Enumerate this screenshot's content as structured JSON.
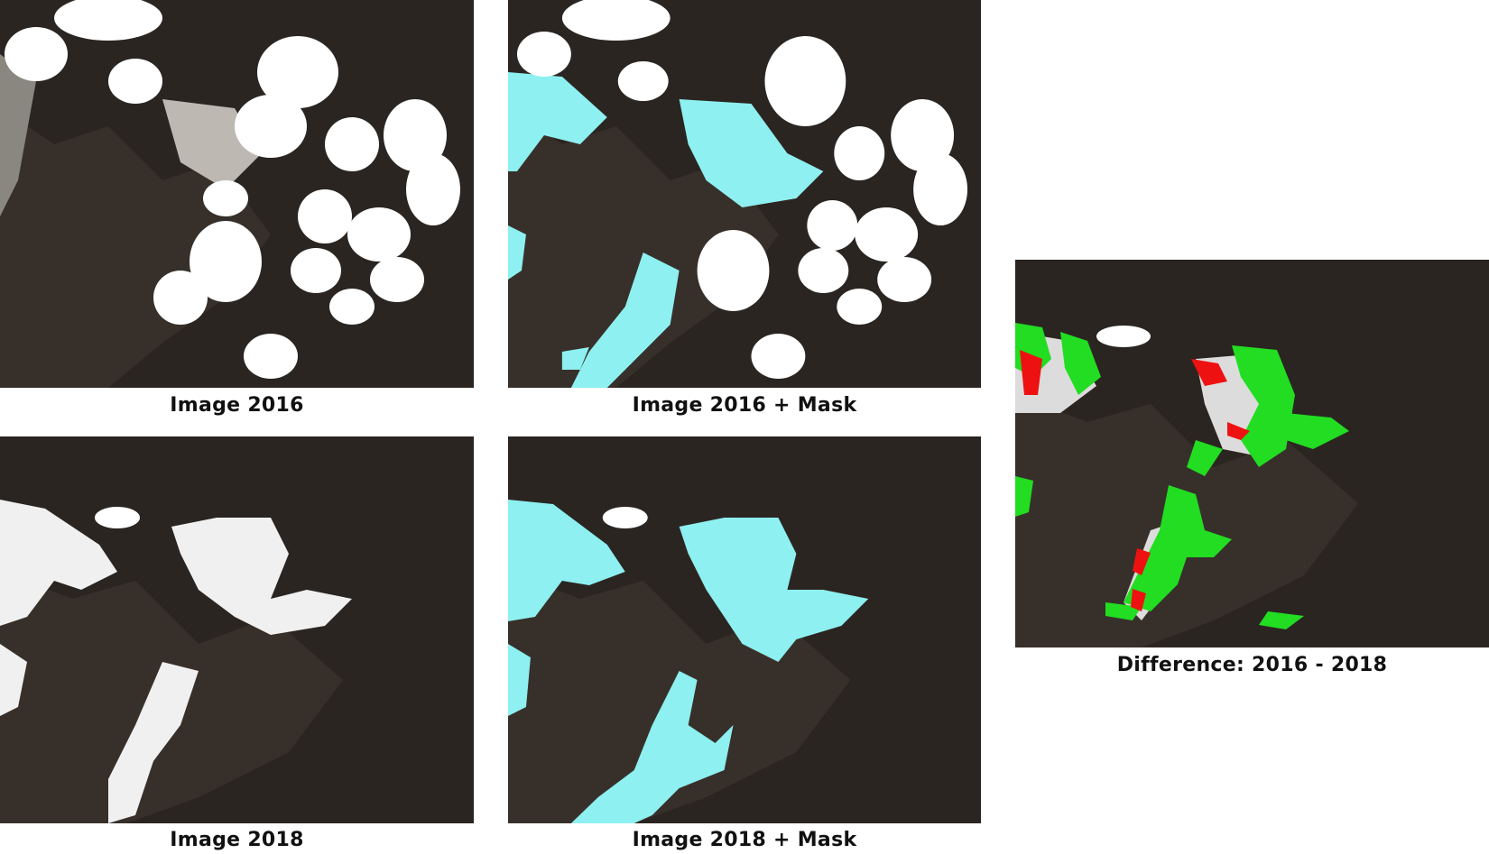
{
  "figure": {
    "panels": [
      {
        "id": "image-2016",
        "caption": "Image 2016"
      },
      {
        "id": "image-2016-mask",
        "caption": "Image 2016 + Mask"
      },
      {
        "id": "image-2018",
        "caption": "Image 2018"
      },
      {
        "id": "image-2018-mask",
        "caption": "Image 2018 + Mask"
      },
      {
        "id": "difference",
        "caption": "Difference: 2016 - 2018"
      }
    ],
    "colors": {
      "terrain": "#2a2420",
      "terrain_light": "#4a4038",
      "snow": "#f2f2f2",
      "cloud": "#ffffff",
      "mask": "#8ef0f0",
      "diff_gain": "#22dd22",
      "diff_loss": "#ee1111"
    }
  }
}
